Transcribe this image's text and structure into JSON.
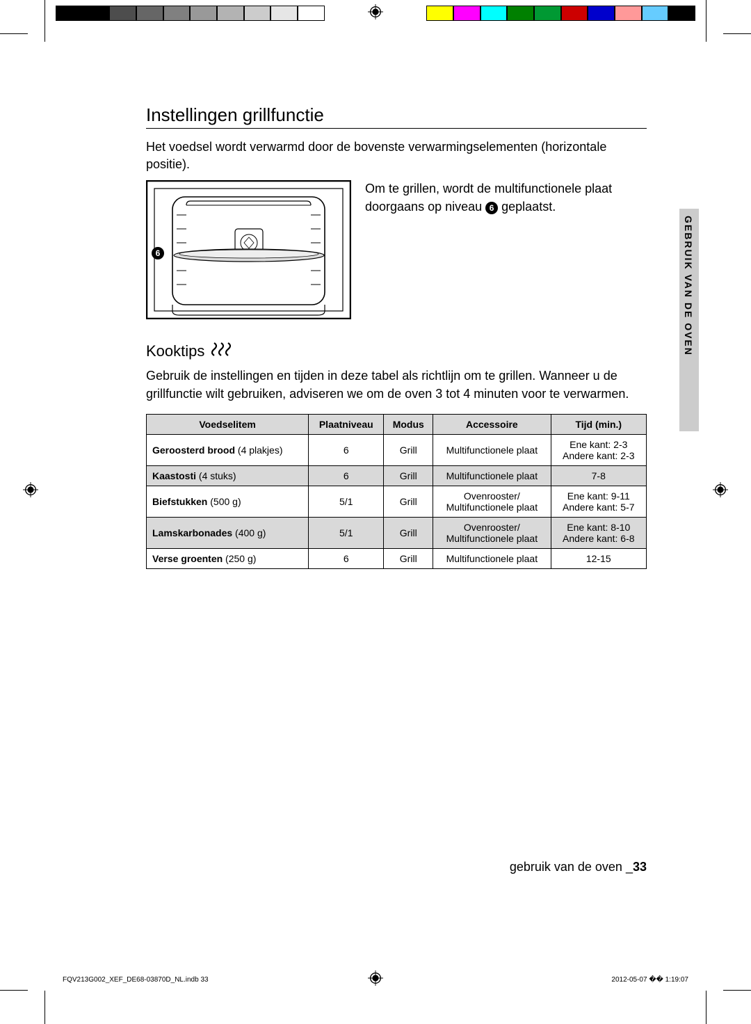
{
  "colorbar_left": [
    "#000000",
    "#000000",
    "#4d4d4d",
    "#666666",
    "#808080",
    "#999999",
    "#b3b3b3",
    "#cccccc",
    "#e6e6e6",
    "#ffffff"
  ],
  "colorbar_right": [
    "#ffff00",
    "#ff00ff",
    "#00ffff",
    "#008000",
    "#009933",
    "#cc0000",
    "#0000cc",
    "#ff9999",
    "#66ccff",
    "#000000"
  ],
  "heading": "Instellingen grillfunctie",
  "intro": "Het voedsel wordt verwarmd door de bovenste verwarmingselementen (horizontale positie).",
  "fig_text_1": "Om te grillen, wordt de multifunctionele plaat doorgaans op niveau ",
  "fig_text_badge": "6",
  "fig_text_2": " geplaatst.",
  "kooktips_heading": "Kooktips",
  "kooktips_text": "Gebruik de instellingen en tijden in deze tabel als richtlijn om te grillen. Wanneer u de grillfunctie wilt gebruiken, adviseren we om de oven 3 tot 4 minuten voor te verwarmen.",
  "sidebar": "GEBRUIK VAN DE OVEN",
  "table": {
    "headers": [
      "Voedselitem",
      "Plaatniveau",
      "Modus",
      "Accessoire",
      "Tijd (min.)"
    ],
    "rows": [
      {
        "item_bold": "Geroosterd brood",
        "item_rest": " (4 plakjes)",
        "level": "6",
        "mode": "Grill",
        "acc": "Multifunctionele plaat",
        "time": "Ene kant: 2-3\nAndere kant: 2-3",
        "alt": false
      },
      {
        "item_bold": "Kaastosti",
        "item_rest": " (4 stuks)",
        "level": "6",
        "mode": "Grill",
        "acc": "Multifunctionele plaat",
        "time": "7-8",
        "alt": true
      },
      {
        "item_bold": "Biefstukken",
        "item_rest": " (500 g)",
        "level": "5/1",
        "mode": "Grill",
        "acc": "Ovenrooster/\nMultifunctionele plaat",
        "time": "Ene kant: 9-11\nAndere kant: 5-7",
        "alt": false
      },
      {
        "item_bold": "Lamskarbonades",
        "item_rest": " (400 g)",
        "level": "5/1",
        "mode": "Grill",
        "acc": "Ovenrooster/\nMultifunctionele plaat",
        "time": "Ene kant: 8-10\nAndere kant: 6-8",
        "alt": true
      },
      {
        "item_bold": "Verse groenten",
        "item_rest": " (250 g)",
        "level": "6",
        "mode": "Grill",
        "acc": "Multifunctionele plaat",
        "time": "12-15",
        "alt": false
      }
    ]
  },
  "footer_text": "gebruik van de oven _",
  "footer_page": "33",
  "imprint_left": "FQV213G002_XEF_DE68-03870D_NL.indb   33",
  "imprint_right": "2012-05-07   �� 1:19:07",
  "oven_badge": "6"
}
